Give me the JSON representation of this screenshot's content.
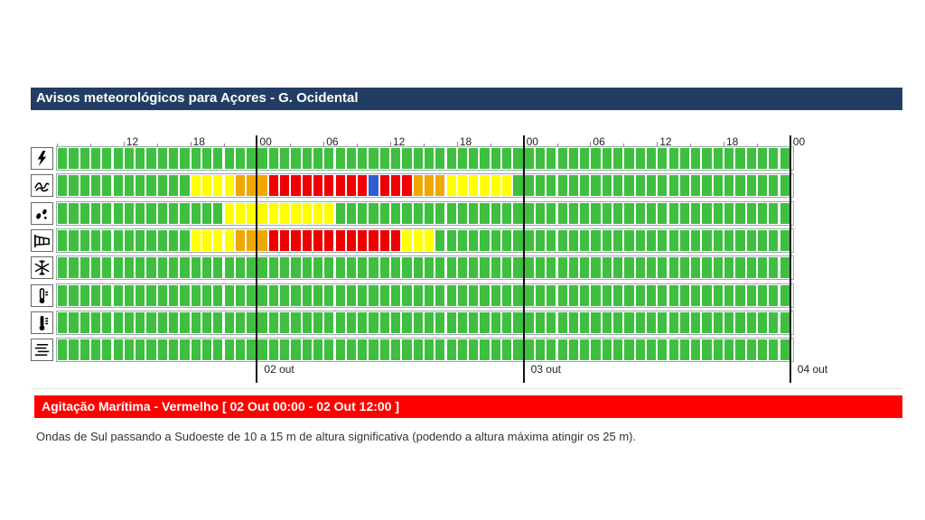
{
  "header": {
    "title": "Avisos meteorológicos para Açores - G. Ocidental"
  },
  "timeline": {
    "hour_labels": [
      "12",
      "18",
      "00",
      "06",
      "12",
      "18",
      "00",
      "06",
      "12",
      "18",
      "00"
    ],
    "date_labels": [
      "02 out",
      "03 out",
      "04 out"
    ]
  },
  "colors": {
    "green": "#3fbf3f",
    "yellow": "#ffff00",
    "orange": "#f0a800",
    "red": "#ee0000",
    "blue": "#2d5fd0"
  },
  "rows": [
    {
      "icon": "thunderstorm-icon",
      "segments": [
        [
          "green",
          66
        ]
      ]
    },
    {
      "icon": "sea-waves-icon",
      "segments": [
        [
          "green",
          12
        ],
        [
          "yellow",
          4
        ],
        [
          "orange",
          3
        ],
        [
          "red",
          9
        ],
        [
          "blue",
          1
        ],
        [
          "red",
          3
        ],
        [
          "orange",
          3
        ],
        [
          "yellow",
          6
        ],
        [
          "green",
          25
        ]
      ]
    },
    {
      "icon": "rain-drops-icon",
      "segments": [
        [
          "green",
          15
        ],
        [
          "yellow",
          10
        ],
        [
          "green",
          41
        ]
      ]
    },
    {
      "icon": "wind-icon",
      "segments": [
        [
          "green",
          12
        ],
        [
          "yellow",
          4
        ],
        [
          "orange",
          3
        ],
        [
          "red",
          12
        ],
        [
          "yellow",
          3
        ],
        [
          "green",
          32
        ]
      ]
    },
    {
      "icon": "snow-icon",
      "segments": [
        [
          "green",
          66
        ]
      ]
    },
    {
      "icon": "cold-thermometer-icon",
      "segments": [
        [
          "green",
          66
        ]
      ]
    },
    {
      "icon": "hot-thermometer-icon",
      "segments": [
        [
          "green",
          66
        ]
      ]
    },
    {
      "icon": "fog-icon",
      "segments": [
        [
          "green",
          66
        ]
      ]
    }
  ],
  "warning": {
    "title": "Agitação Marítima - Vermelho [ 02 Out 00:00 - 02 Out 12:00 ]",
    "description": "Ondas de Sul passando a Sudoeste de 10 a 15 m de altura significativa (podendo a altura máxima atingir os 25 m)."
  }
}
